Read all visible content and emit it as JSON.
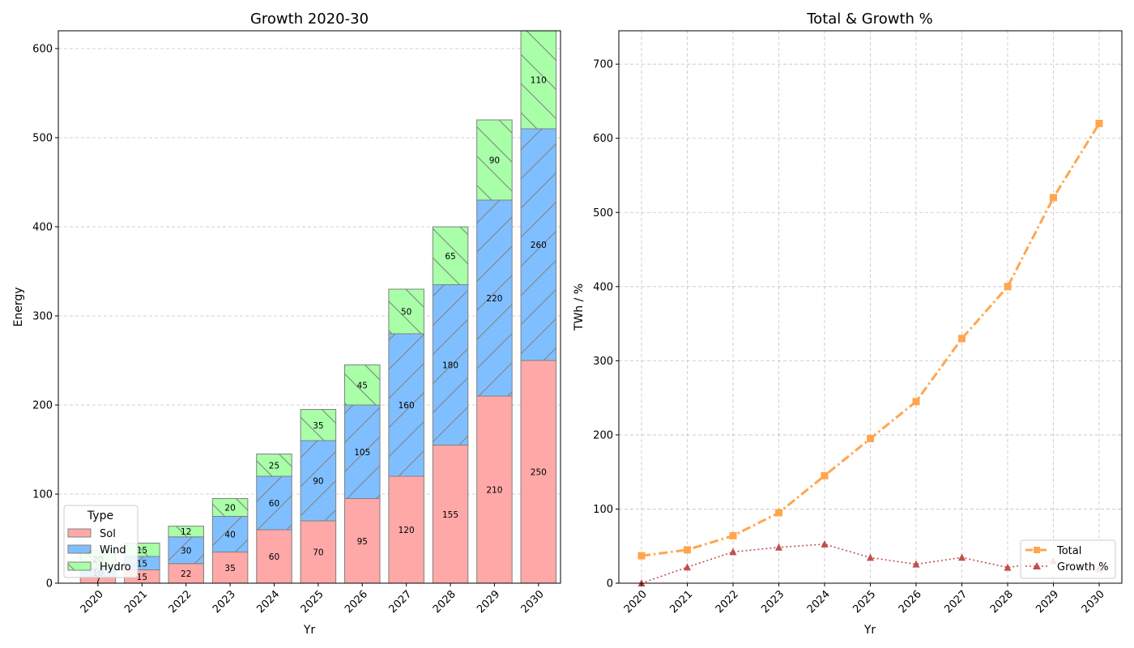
{
  "chart_data": [
    {
      "type": "bar",
      "stacked": true,
      "title": "Growth 2020-30",
      "xlabel": "Yr",
      "ylabel": "Energy",
      "categories": [
        "2020",
        "2021",
        "2022",
        "2023",
        "2024",
        "2025",
        "2026",
        "2027",
        "2028",
        "2029",
        "2030"
      ],
      "ylim": [
        0,
        620
      ],
      "yticks": [
        0,
        100,
        200,
        300,
        400,
        500,
        600
      ],
      "grid": "y-dashed",
      "legend": {
        "title": "Type",
        "placement": "lower-left"
      },
      "series": [
        {
          "name": "Sol",
          "color": "#ffa8a8",
          "hatch": "none",
          "values": [
            7,
            15,
            22,
            35,
            60,
            70,
            95,
            120,
            155,
            210,
            250
          ]
        },
        {
          "name": "Wind",
          "color": "#80bfff",
          "hatch": "slash",
          "values": [
            10,
            15,
            30,
            40,
            60,
            90,
            105,
            160,
            180,
            220,
            260
          ]
        },
        {
          "name": "Hydro",
          "color": "#a8ffa8",
          "hatch": "backslash",
          "values": [
            20,
            15,
            12,
            20,
            25,
            35,
            45,
            50,
            65,
            90,
            110
          ]
        }
      ]
    },
    {
      "type": "line",
      "title": "Total & Growth %",
      "xlabel": "Yr",
      "ylabel": "TWh / %",
      "categories": [
        "2020",
        "2021",
        "2022",
        "2023",
        "2024",
        "2025",
        "2026",
        "2027",
        "2028",
        "2029",
        "2030"
      ],
      "ylim": [
        0,
        745
      ],
      "yticks": [
        0,
        100,
        200,
        300,
        400,
        500,
        600,
        700
      ],
      "grid": "both-dashed",
      "legend": {
        "placement": "lower-right"
      },
      "series": [
        {
          "name": "Total",
          "color": "#ffa64d",
          "style": "dash-dot",
          "marker": "square",
          "values": [
            37,
            45,
            64,
            95,
            145,
            195,
            245,
            330,
            400,
            520,
            620
          ]
        },
        {
          "name": "Growth %",
          "color": "#c0504d",
          "style": "dotted",
          "marker": "triangle",
          "values": [
            0,
            21.6,
            42.2,
            48.4,
            52.6,
            34.5,
            25.6,
            34.7,
            21.2,
            30.0,
            19.2
          ]
        }
      ]
    }
  ]
}
